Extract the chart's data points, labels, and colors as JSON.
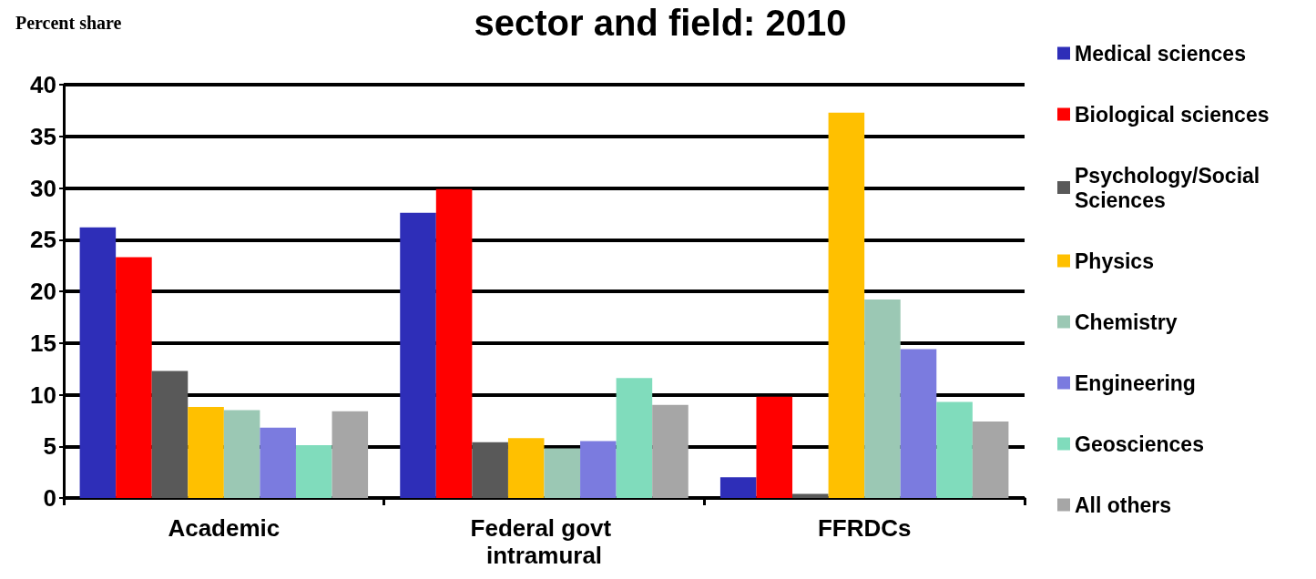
{
  "chart_data": {
    "type": "bar",
    "title": "sector and field: 2010",
    "ylabel": "Percent share",
    "categories": [
      "Academic",
      "Federal govt intramural",
      "FFRDCs"
    ],
    "series": [
      {
        "name": "Medical sciences",
        "color": "#2e2eb8",
        "values": [
          26.2,
          27.6,
          2.0
        ]
      },
      {
        "name": "Biological sciences",
        "color": "#ff0000",
        "values": [
          23.3,
          29.9,
          9.8
        ]
      },
      {
        "name": "Psychology/Social Sciences",
        "color": "#595959",
        "values": [
          12.3,
          5.4,
          0.4
        ]
      },
      {
        "name": "Physics",
        "color": "#ffc000",
        "values": [
          8.8,
          5.8,
          37.3
        ]
      },
      {
        "name": "Chemistry",
        "color": "#9bc8b4",
        "values": [
          8.5,
          4.8,
          19.2
        ]
      },
      {
        "name": "Engineering",
        "color": "#7b7bdf",
        "values": [
          6.8,
          5.5,
          14.4
        ]
      },
      {
        "name": "Geosciences",
        "color": "#80dcbc",
        "values": [
          5.1,
          11.6,
          9.3
        ]
      },
      {
        "name": "All others",
        "color": "#a6a6a6",
        "values": [
          8.4,
          9.0,
          7.4
        ]
      }
    ],
    "ylim": [
      0,
      40
    ],
    "yticks": [
      0,
      5,
      10,
      15,
      20,
      25,
      30,
      35,
      40
    ],
    "grid": "y",
    "legend": "right"
  }
}
